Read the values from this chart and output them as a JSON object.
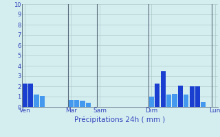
{
  "title": "",
  "xlabel": "Précipitations 24h ( mm )",
  "ylim": [
    0,
    10
  ],
  "bar_color_dark": "#1a3ecf",
  "bar_color_light": "#4499ee",
  "background_color": "#d4eef0",
  "grid_color": "#b0c8c8",
  "text_color": "#3344bb",
  "values": [
    2.3,
    2.3,
    1.2,
    1.1,
    0,
    0,
    0,
    0,
    0.7,
    0.7,
    0.6,
    0.4,
    0,
    0,
    0,
    0,
    0,
    0,
    0,
    0,
    0,
    0,
    1.0,
    2.3,
    3.5,
    1.2,
    1.3,
    2.1,
    1.2,
    2.0,
    2.0,
    0.5,
    0,
    0
  ],
  "bar_colors": [
    "dark",
    "dark",
    "light",
    "light",
    "n",
    "n",
    "n",
    "n",
    "light",
    "light",
    "light",
    "light",
    "n",
    "n",
    "n",
    "n",
    "n",
    "n",
    "n",
    "n",
    "n",
    "n",
    "light",
    "dark",
    "dark",
    "light",
    "light",
    "dark",
    "light",
    "dark",
    "dark",
    "light",
    "n",
    "n"
  ],
  "xtick_positions": [
    0,
    8,
    13,
    22,
    33
  ],
  "xtick_labels": [
    "Ven",
    "Mar",
    "Sam",
    "Dim",
    "Lun"
  ],
  "vline_positions": [
    7.5,
    12.5,
    21.5,
    32.5
  ],
  "yticks": [
    0,
    1,
    2,
    3,
    4,
    5,
    6,
    7,
    8,
    9,
    10
  ]
}
